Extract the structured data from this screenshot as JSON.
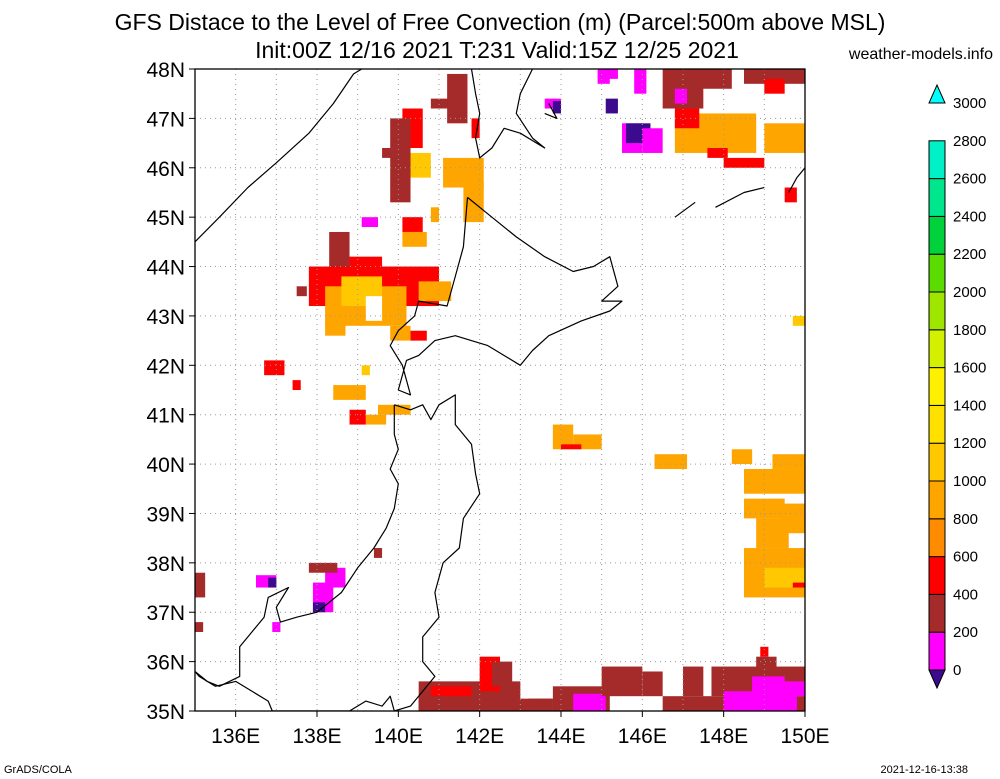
{
  "title_line1": "GFS Distace to the Level of Free Convection (m) (Parcel:500m above MSL)",
  "title_line2": "Init:00Z 12/16 2021 T:231 Valid:15Z 12/25 2021",
  "site": "weather-models.info",
  "footer_left": "GrADS/COLA",
  "footer_right": "2021-12-16-13:38",
  "lon_labels": [
    "136E",
    "138E",
    "140E",
    "142E",
    "144E",
    "146E",
    "148E",
    "150E"
  ],
  "lat_labels": [
    "48N",
    "47N",
    "46N",
    "45N",
    "44N",
    "43N",
    "42N",
    "41N",
    "40N",
    "39N",
    "38N",
    "37N",
    "36N",
    "35N"
  ],
  "colorbar": {
    "labels": [
      "3000",
      "2800",
      "2600",
      "2400",
      "2200",
      "2000",
      "1800",
      "1600",
      "1400",
      "1200",
      "1000",
      "800",
      "600",
      "400",
      "200",
      "0"
    ],
    "colors": [
      "#3c0a8c",
      "#ff00ff",
      "#a52a2a",
      "#ff0000",
      "#ff8c00",
      "#ffa500",
      "#ffc800",
      "#ffe100",
      "#fff000",
      "#d2f000",
      "#9ee600",
      "#5adc00",
      "#00d23c",
      "#00e68c",
      "#00f0c8",
      "#00ffff"
    ]
  },
  "map": {
    "lon_range": [
      135,
      150
    ],
    "lat_range": [
      35,
      48
    ],
    "cells": [
      {
        "lon": 141.1,
        "lat": 45.6,
        "w": 1.0,
        "h": 0.6,
        "c": "#ffa500"
      },
      {
        "lon": 140.2,
        "lat": 45.8,
        "w": 0.6,
        "h": 0.5,
        "c": "#ffc800"
      },
      {
        "lon": 141.6,
        "lat": 44.9,
        "w": 0.5,
        "h": 0.8,
        "c": "#ffa500"
      },
      {
        "lon": 140.1,
        "lat": 46.4,
        "w": 0.5,
        "h": 0.8,
        "c": "#ff0000"
      },
      {
        "lon": 139.8,
        "lat": 45.3,
        "w": 0.5,
        "h": 1.7,
        "c": "#a52a2a"
      },
      {
        "lon": 139.6,
        "lat": 46.2,
        "w": 0.5,
        "h": 0.2,
        "c": "#a52a2a"
      },
      {
        "lon": 140.8,
        "lat": 47.2,
        "w": 0.5,
        "h": 0.2,
        "c": "#a52a2a"
      },
      {
        "lon": 141.2,
        "lat": 46.9,
        "w": 0.5,
        "h": 1.0,
        "c": "#a52a2a"
      },
      {
        "lon": 141.8,
        "lat": 46.6,
        "w": 0.2,
        "h": 0.4,
        "c": "#ff0000"
      },
      {
        "lon": 140.1,
        "lat": 44.7,
        "w": 0.5,
        "h": 0.3,
        "c": "#ff0000"
      },
      {
        "lon": 140.1,
        "lat": 44.4,
        "w": 0.6,
        "h": 0.3,
        "c": "#ffa500"
      },
      {
        "lon": 139.1,
        "lat": 44.8,
        "w": 0.4,
        "h": 0.2,
        "c": "#ff00ff"
      },
      {
        "lon": 140.8,
        "lat": 44.9,
        "w": 0.2,
        "h": 0.3,
        "c": "#ffa500"
      },
      {
        "lon": 138.3,
        "lat": 43.9,
        "w": 0.5,
        "h": 0.8,
        "c": "#a52a2a"
      },
      {
        "lon": 138.8,
        "lat": 43.7,
        "w": 0.8,
        "h": 0.5,
        "c": "#ff0000"
      },
      {
        "lon": 137.8,
        "lat": 43.2,
        "w": 3.2,
        "h": 0.8,
        "c": "#ff0000"
      },
      {
        "lon": 138.2,
        "lat": 42.8,
        "w": 2.0,
        "h": 0.8,
        "c": "#ffa500"
      },
      {
        "lon": 138.6,
        "lat": 43.2,
        "w": 1.0,
        "h": 0.6,
        "c": "#ffc800"
      },
      {
        "lon": 139.2,
        "lat": 42.9,
        "w": 0.4,
        "h": 0.5,
        "c": "#ffffff"
      },
      {
        "lon": 138.2,
        "lat": 42.6,
        "w": 0.5,
        "h": 0.3,
        "c": "#ffa500"
      },
      {
        "lon": 139.8,
        "lat": 42.5,
        "w": 0.5,
        "h": 0.3,
        "c": "#ffa500"
      },
      {
        "lon": 140.5,
        "lat": 43.3,
        "w": 0.8,
        "h": 0.4,
        "c": "#ffa500"
      },
      {
        "lon": 140.3,
        "lat": 42.5,
        "w": 0.4,
        "h": 0.2,
        "c": "#ff0000"
      },
      {
        "lon": 137.5,
        "lat": 43.4,
        "w": 0.25,
        "h": 0.2,
        "c": "#a52a2a"
      },
      {
        "lon": 136.7,
        "lat": 41.8,
        "w": 0.5,
        "h": 0.3,
        "c": "#ff0000"
      },
      {
        "lon": 137.4,
        "lat": 41.5,
        "w": 0.2,
        "h": 0.2,
        "c": "#ff0000"
      },
      {
        "lon": 138.4,
        "lat": 41.3,
        "w": 0.8,
        "h": 0.3,
        "c": "#ffa500"
      },
      {
        "lon": 139.1,
        "lat": 41.8,
        "w": 0.2,
        "h": 0.2,
        "c": "#ffc800"
      },
      {
        "lon": 139.5,
        "lat": 41.0,
        "w": 0.8,
        "h": 0.2,
        "c": "#ffa500"
      },
      {
        "lon": 139.2,
        "lat": 40.8,
        "w": 0.5,
        "h": 0.2,
        "c": "#ffa500"
      },
      {
        "lon": 138.8,
        "lat": 40.8,
        "w": 0.4,
        "h": 0.3,
        "c": "#ff0000"
      },
      {
        "lon": 143.8,
        "lat": 40.3,
        "w": 0.5,
        "h": 0.5,
        "c": "#ffa500"
      },
      {
        "lon": 144.3,
        "lat": 40.3,
        "w": 0.7,
        "h": 0.3,
        "c": "#ffa500"
      },
      {
        "lon": 144.0,
        "lat": 40.3,
        "w": 0.5,
        "h": 0.1,
        "c": "#ff0000"
      },
      {
        "lon": 146.3,
        "lat": 39.9,
        "w": 0.8,
        "h": 0.3,
        "c": "#ffa500"
      },
      {
        "lon": 148.2,
        "lat": 40.0,
        "w": 0.5,
        "h": 0.3,
        "c": "#ffa500"
      },
      {
        "lon": 148.5,
        "lat": 39.4,
        "w": 1.5,
        "h": 0.5,
        "c": "#ffa500"
      },
      {
        "lon": 149.2,
        "lat": 39.9,
        "w": 0.8,
        "h": 0.3,
        "c": "#ffa500"
      },
      {
        "lon": 148.5,
        "lat": 38.9,
        "w": 1.0,
        "h": 0.4,
        "c": "#ffa500"
      },
      {
        "lon": 148.8,
        "lat": 38.3,
        "w": 0.8,
        "h": 0.6,
        "c": "#ffa500"
      },
      {
        "lon": 148.5,
        "lat": 37.3,
        "w": 1.5,
        "h": 1.0,
        "c": "#ffa500"
      },
      {
        "lon": 149.4,
        "lat": 38.6,
        "w": 0.6,
        "h": 0.6,
        "c": "#ffa500"
      },
      {
        "lon": 149.0,
        "lat": 37.5,
        "w": 1.0,
        "h": 0.4,
        "c": "#ffc800"
      },
      {
        "lon": 149.7,
        "lat": 37.5,
        "w": 0.3,
        "h": 0.1,
        "c": "#ff0000"
      },
      {
        "lon": 149.7,
        "lat": 42.8,
        "w": 0.3,
        "h": 0.2,
        "c": "#ffc800"
      },
      {
        "lon": 149.5,
        "lat": 45.3,
        "w": 0.3,
        "h": 0.3,
        "c": "#ff0000"
      },
      {
        "lon": 146.8,
        "lat": 46.3,
        "w": 2.0,
        "h": 0.8,
        "c": "#ffa500"
      },
      {
        "lon": 147.3,
        "lat": 46.6,
        "w": 0.6,
        "h": 0.3,
        "c": "#ffa500"
      },
      {
        "lon": 149.0,
        "lat": 46.3,
        "w": 1.0,
        "h": 0.6,
        "c": "#ffa500"
      },
      {
        "lon": 148.0,
        "lat": 46.0,
        "w": 1.0,
        "h": 0.2,
        "c": "#ff0000"
      },
      {
        "lon": 147.6,
        "lat": 46.2,
        "w": 0.5,
        "h": 0.2,
        "c": "#ff0000"
      },
      {
        "lon": 146.8,
        "lat": 46.8,
        "w": 0.6,
        "h": 0.6,
        "c": "#ff0000"
      },
      {
        "lon": 146.5,
        "lat": 47.2,
        "w": 1.0,
        "h": 0.8,
        "c": "#a52a2a"
      },
      {
        "lon": 147.2,
        "lat": 47.6,
        "w": 1.0,
        "h": 0.4,
        "c": "#a52a2a"
      },
      {
        "lon": 148.5,
        "lat": 47.7,
        "w": 1.5,
        "h": 0.3,
        "c": "#a52a2a"
      },
      {
        "lon": 149.0,
        "lat": 47.5,
        "w": 0.5,
        "h": 0.3,
        "c": "#ff0000"
      },
      {
        "lon": 145.5,
        "lat": 46.3,
        "w": 0.5,
        "h": 0.6,
        "c": "#ff00ff"
      },
      {
        "lon": 145.6,
        "lat": 46.5,
        "w": 0.6,
        "h": 0.4,
        "c": "#3c0a8c"
      },
      {
        "lon": 146.0,
        "lat": 46.3,
        "w": 0.5,
        "h": 0.5,
        "c": "#ff00ff"
      },
      {
        "lon": 145.8,
        "lat": 47.5,
        "w": 0.3,
        "h": 0.5,
        "c": "#ff00ff"
      },
      {
        "lon": 146.8,
        "lat": 47.3,
        "w": 0.3,
        "h": 0.3,
        "c": "#ff00ff"
      },
      {
        "lon": 144.9,
        "lat": 47.7,
        "w": 0.3,
        "h": 0.3,
        "c": "#ff00ff"
      },
      {
        "lon": 145.1,
        "lat": 47.1,
        "w": 0.3,
        "h": 0.3,
        "c": "#3c0a8c"
      },
      {
        "lon": 145.1,
        "lat": 47.8,
        "w": 0.3,
        "h": 0.2,
        "c": "#ff00ff"
      },
      {
        "lon": 143.6,
        "lat": 47.2,
        "w": 0.4,
        "h": 0.2,
        "c": "#ff00ff"
      },
      {
        "lon": 143.8,
        "lat": 47.1,
        "w": 0.2,
        "h": 0.25,
        "c": "#3c0a8c"
      },
      {
        "lon": 135.0,
        "lat": 37.3,
        "w": 0.25,
        "h": 0.5,
        "c": "#a52a2a"
      },
      {
        "lon": 135.0,
        "lat": 36.6,
        "w": 0.2,
        "h": 0.2,
        "c": "#a52a2a"
      },
      {
        "lon": 136.5,
        "lat": 37.5,
        "w": 0.5,
        "h": 0.25,
        "c": "#ff00ff"
      },
      {
        "lon": 136.8,
        "lat": 37.5,
        "w": 0.2,
        "h": 0.2,
        "c": "#3c0a8c"
      },
      {
        "lon": 137.9,
        "lat": 37.0,
        "w": 0.5,
        "h": 0.6,
        "c": "#ff00ff"
      },
      {
        "lon": 138.2,
        "lat": 37.5,
        "w": 0.5,
        "h": 0.4,
        "c": "#ff00ff"
      },
      {
        "lon": 137.8,
        "lat": 37.8,
        "w": 0.7,
        "h": 0.2,
        "c": "#a52a2a"
      },
      {
        "lon": 137.9,
        "lat": 37.0,
        "w": 0.3,
        "h": 0.2,
        "c": "#3c0a8c"
      },
      {
        "lon": 136.9,
        "lat": 36.6,
        "w": 0.2,
        "h": 0.2,
        "c": "#ff00ff"
      },
      {
        "lon": 139.4,
        "lat": 38.1,
        "w": 0.2,
        "h": 0.2,
        "c": "#a52a2a"
      },
      {
        "lon": 140.5,
        "lat": 35.0,
        "w": 2.5,
        "h": 0.6,
        "c": "#a52a2a"
      },
      {
        "lon": 140.5,
        "lat": 35.0,
        "w": 2.0,
        "h": 0.25,
        "c": "#a52a2a"
      },
      {
        "lon": 140.8,
        "lat": 35.3,
        "w": 1.0,
        "h": 0.2,
        "c": "#ff0000"
      },
      {
        "lon": 142.0,
        "lat": 35.4,
        "w": 0.5,
        "h": 0.7,
        "c": "#ff0000"
      },
      {
        "lon": 142.3,
        "lat": 35.5,
        "w": 0.5,
        "h": 0.5,
        "c": "#a52a2a"
      },
      {
        "lon": 142.8,
        "lat": 35.0,
        "w": 1.0,
        "h": 0.25,
        "c": "#a52a2a"
      },
      {
        "lon": 143.8,
        "lat": 35.0,
        "w": 1.4,
        "h": 0.5,
        "c": "#a52a2a"
      },
      {
        "lon": 144.3,
        "lat": 35.0,
        "w": 0.8,
        "h": 0.35,
        "c": "#ff00ff"
      },
      {
        "lon": 145.0,
        "lat": 35.3,
        "w": 1.0,
        "h": 0.6,
        "c": "#a52a2a"
      },
      {
        "lon": 146.0,
        "lat": 35.3,
        "w": 0.5,
        "h": 0.5,
        "c": "#a52a2a"
      },
      {
        "lon": 146.5,
        "lat": 35.0,
        "w": 3.5,
        "h": 0.3,
        "c": "#a52a2a"
      },
      {
        "lon": 147.0,
        "lat": 35.3,
        "w": 0.5,
        "h": 0.6,
        "c": "#a52a2a"
      },
      {
        "lon": 147.7,
        "lat": 35.3,
        "w": 2.3,
        "h": 0.6,
        "c": "#a52a2a"
      },
      {
        "lon": 148.0,
        "lat": 35.0,
        "w": 1.8,
        "h": 0.4,
        "c": "#ff00ff"
      },
      {
        "lon": 148.7,
        "lat": 35.3,
        "w": 0.8,
        "h": 0.4,
        "c": "#ff00ff"
      },
      {
        "lon": 149.5,
        "lat": 35.3,
        "w": 0.5,
        "h": 0.3,
        "c": "#ff00ff"
      },
      {
        "lon": 148.8,
        "lat": 35.8,
        "w": 0.5,
        "h": 0.3,
        "c": "#a52a2a"
      },
      {
        "lon": 148.9,
        "lat": 36.1,
        "w": 0.2,
        "h": 0.2,
        "c": "#ff0000"
      },
      {
        "lon": 143.2,
        "lat": 35.0,
        "w": 0.6,
        "h": 0.25,
        "c": "#a52a2a"
      },
      {
        "lon": 140.5,
        "lat": 35.0,
        "w": 0.6,
        "h": 0.3,
        "c": "#a52a2a"
      }
    ],
    "coastlines": [
      [
        [
          135.0,
          44.5
        ],
        [
          135.6,
          45.0
        ],
        [
          136.3,
          45.6
        ],
        [
          137.0,
          46.1
        ],
        [
          137.8,
          46.7
        ],
        [
          138.4,
          47.3
        ],
        [
          138.9,
          47.9
        ],
        [
          139.1,
          48.0
        ]
      ],
      [
        [
          141.8,
          48.0
        ],
        [
          141.9,
          47.5
        ],
        [
          142.0,
          47.1
        ],
        [
          141.9,
          46.6
        ],
        [
          142.0,
          46.2
        ],
        [
          142.3,
          46.4
        ],
        [
          142.6,
          46.8
        ],
        [
          143.0,
          46.7
        ],
        [
          143.4,
          46.5
        ],
        [
          143.6,
          46.4
        ],
        [
          143.3,
          46.6
        ],
        [
          142.9,
          47.1
        ],
        [
          143.0,
          47.5
        ],
        [
          143.3,
          48.0
        ]
      ],
      [
        [
          141.7,
          45.4
        ],
        [
          142.3,
          45.0
        ],
        [
          142.9,
          44.6
        ],
        [
          143.6,
          44.2
        ],
        [
          144.3,
          43.9
        ],
        [
          144.8,
          44.0
        ],
        [
          145.2,
          44.2
        ],
        [
          145.4,
          43.6
        ],
        [
          145.0,
          43.3
        ],
        [
          145.5,
          43.3
        ],
        [
          145.2,
          43.1
        ],
        [
          144.5,
          42.9
        ],
        [
          143.7,
          42.6
        ],
        [
          143.3,
          42.3
        ],
        [
          143.0,
          42.0
        ],
        [
          142.2,
          42.4
        ],
        [
          141.4,
          42.6
        ],
        [
          140.9,
          42.5
        ],
        [
          140.5,
          42.2
        ],
        [
          140.2,
          42.1
        ],
        [
          140.0,
          41.5
        ],
        [
          140.3,
          41.4
        ],
        [
          140.1,
          42.0
        ],
        [
          139.8,
          42.4
        ],
        [
          140.0,
          42.7
        ],
        [
          140.4,
          43.0
        ],
        [
          140.5,
          43.3
        ],
        [
          141.2,
          43.2
        ],
        [
          141.4,
          43.8
        ],
        [
          141.6,
          44.4
        ],
        [
          141.7,
          45.4
        ]
      ],
      [
        [
          139.9,
          41.2
        ],
        [
          140.3,
          41.1
        ],
        [
          140.6,
          41.2
        ],
        [
          140.8,
          40.9
        ],
        [
          141.0,
          41.2
        ],
        [
          141.4,
          41.4
        ],
        [
          141.4,
          40.8
        ],
        [
          141.8,
          40.4
        ],
        [
          141.9,
          39.8
        ],
        [
          142.0,
          39.4
        ],
        [
          141.6,
          38.9
        ],
        [
          141.5,
          38.3
        ],
        [
          141.1,
          38.0
        ],
        [
          140.9,
          37.4
        ],
        [
          141.0,
          36.9
        ],
        [
          140.6,
          36.5
        ],
        [
          140.6,
          36.0
        ],
        [
          140.9,
          35.7
        ],
        [
          140.3,
          35.1
        ],
        [
          139.9,
          35.0
        ],
        [
          139.8,
          35.3
        ],
        [
          139.6,
          35.1
        ],
        [
          139.2,
          35.2
        ],
        [
          138.8,
          35.0
        ],
        [
          138.5,
          35.0
        ],
        [
          137.6,
          35.0
        ],
        [
          136.9,
          35.0
        ],
        [
          136.8,
          35.2
        ],
        [
          136.0,
          35.6
        ],
        [
          135.5,
          35.5
        ],
        [
          135.1,
          35.7
        ],
        [
          135.0,
          35.8
        ]
      ],
      [
        [
          135.0,
          35.8
        ],
        [
          135.3,
          35.6
        ],
        [
          135.6,
          35.5
        ],
        [
          136.1,
          35.7
        ],
        [
          136.1,
          36.3
        ],
        [
          136.7,
          36.9
        ],
        [
          136.8,
          37.3
        ],
        [
          137.3,
          37.5
        ],
        [
          137.0,
          37.1
        ],
        [
          137.1,
          36.8
        ],
        [
          137.5,
          36.9
        ],
        [
          138.0,
          37.0
        ],
        [
          138.6,
          37.4
        ],
        [
          139.0,
          37.9
        ],
        [
          139.4,
          38.3
        ],
        [
          139.7,
          38.7
        ],
        [
          139.9,
          39.1
        ],
        [
          140.0,
          39.6
        ],
        [
          139.8,
          39.9
        ],
        [
          140.0,
          40.3
        ],
        [
          139.9,
          40.6
        ],
        [
          139.9,
          41.2
        ]
      ],
      [
        [
          143.6,
          47.1
        ],
        [
          143.9,
          47.0
        ],
        [
          143.7,
          47.3
        ]
      ],
      [
        [
          149.6,
          45.5
        ],
        [
          149.8,
          45.8
        ],
        [
          150.0,
          46.0
        ]
      ],
      [
        [
          147.8,
          45.2
        ],
        [
          148.5,
          45.5
        ],
        [
          149.0,
          45.6
        ]
      ],
      [
        [
          146.8,
          45.0
        ],
        [
          147.3,
          45.3
        ]
      ]
    ]
  }
}
